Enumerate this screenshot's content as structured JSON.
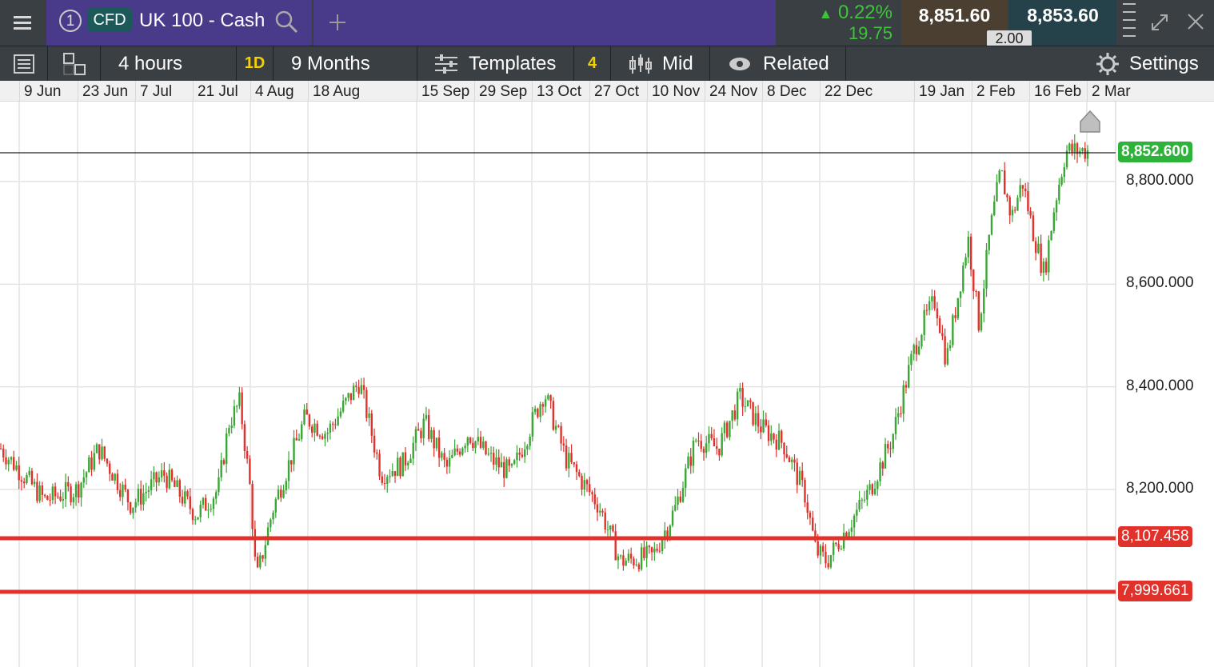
{
  "header": {
    "menu_icon": "hamburger-icon",
    "number_badge": "1",
    "type_badge": "CFD",
    "instrument": "UK 100 - Cash",
    "change_pct": "0.22%",
    "change_abs": "19.75",
    "sell_price": "8,851.60",
    "buy_price": "8,853.60",
    "spread": "2.00"
  },
  "toolbar": {
    "interval": "4 hours",
    "period_badge": "1D",
    "range": "9 Months",
    "templates_label": "Templates",
    "templates_count": "4",
    "price_type": "Mid",
    "related_label": "Related",
    "settings_label": "Settings"
  },
  "colors": {
    "accent_purple": "#4a3a8a",
    "up": "#3aa635",
    "down": "#e0312b",
    "level": "#e0312b"
  },
  "chart_data": {
    "type": "candlestick",
    "x_tick_labels": [
      "9 Jun",
      "23 Jun",
      "7 Jul",
      "21 Jul",
      "4 Aug",
      "18 Aug",
      "15 Sep",
      "29 Sep",
      "13 Oct",
      "27 Oct",
      "10 Nov",
      "24 Nov",
      "8 Dec",
      "22 Dec",
      "19 Jan",
      "2 Feb",
      "16 Feb",
      "2 Mar"
    ],
    "y_tick_labels": [
      "8,800.000",
      "8,600.000",
      "8,400.000",
      "8,200.000"
    ],
    "current_price": "8,852.600",
    "levels": [
      "8,107.458",
      "7,999.661"
    ],
    "ylim": [
      7900,
      8900
    ],
    "path_points": [
      [
        0,
        8280
      ],
      [
        0.04,
        8180
      ],
      [
        0.07,
        8200
      ],
      [
        0.09,
        8280
      ],
      [
        0.12,
        8170
      ],
      [
        0.15,
        8230
      ],
      [
        0.18,
        8150
      ],
      [
        0.2,
        8200
      ],
      [
        0.21,
        8330
      ],
      [
        0.22,
        8370
      ],
      [
        0.23,
        8190
      ],
      [
        0.235,
        8020
      ],
      [
        0.25,
        8160
      ],
      [
        0.28,
        8340
      ],
      [
        0.3,
        8310
      ],
      [
        0.33,
        8410
      ],
      [
        0.35,
        8230
      ],
      [
        0.37,
        8250
      ],
      [
        0.39,
        8330
      ],
      [
        0.41,
        8240
      ],
      [
        0.43,
        8310
      ],
      [
        0.45,
        8260
      ],
      [
        0.47,
        8230
      ],
      [
        0.5,
        8390
      ],
      [
        0.52,
        8260
      ],
      [
        0.55,
        8170
      ],
      [
        0.57,
        8060
      ],
      [
        0.6,
        8070
      ],
      [
        0.62,
        8160
      ],
      [
        0.64,
        8300
      ],
      [
        0.66,
        8280
      ],
      [
        0.68,
        8380
      ],
      [
        0.7,
        8320
      ],
      [
        0.72,
        8290
      ],
      [
        0.74,
        8190
      ],
      [
        0.75,
        8080
      ],
      [
        0.76,
        8060
      ],
      [
        0.78,
        8130
      ],
      [
        0.8,
        8200
      ],
      [
        0.82,
        8300
      ],
      [
        0.84,
        8470
      ],
      [
        0.85,
        8530
      ],
      [
        0.86,
        8570
      ],
      [
        0.87,
        8450
      ],
      [
        0.88,
        8570
      ],
      [
        0.89,
        8690
      ],
      [
        0.9,
        8520
      ],
      [
        0.91,
        8700
      ],
      [
        0.92,
        8820
      ],
      [
        0.93,
        8730
      ],
      [
        0.94,
        8800
      ],
      [
        0.95,
        8700
      ],
      [
        0.96,
        8620
      ],
      [
        0.97,
        8760
      ],
      [
        0.98,
        8860
      ]
    ]
  }
}
